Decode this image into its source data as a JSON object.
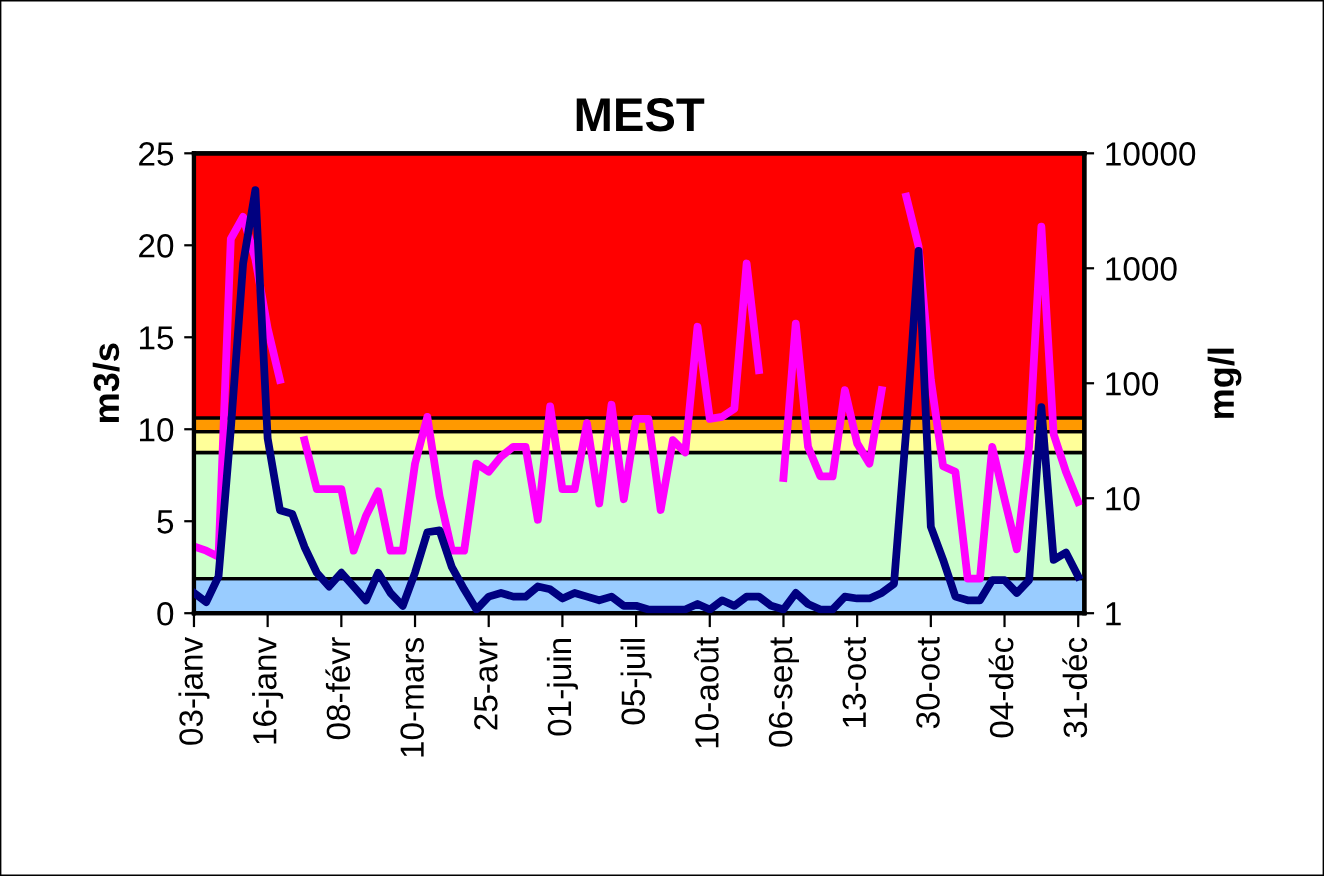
{
  "chart_data": {
    "type": "line",
    "title": "MEST",
    "ylabel": "m3/s",
    "y2label": "mg/l",
    "categories": [
      "03-janv",
      null,
      null,
      null,
      null,
      null,
      "16-janv",
      null,
      null,
      null,
      null,
      null,
      "08-févr",
      null,
      null,
      null,
      null,
      null,
      "10-mars",
      null,
      null,
      null,
      null,
      null,
      "25-avr",
      null,
      null,
      null,
      null,
      null,
      "01-juin",
      null,
      null,
      null,
      null,
      null,
      "05-juil",
      null,
      null,
      null,
      null,
      null,
      "10-août",
      null,
      null,
      null,
      null,
      null,
      "06-sept",
      null,
      null,
      null,
      null,
      null,
      "13-oct",
      null,
      null,
      null,
      null,
      null,
      "30-oct",
      null,
      null,
      null,
      null,
      null,
      "04-déc",
      null,
      null,
      null,
      null,
      null,
      "31-déc"
    ],
    "series": [
      {
        "color": "#000080",
        "values": [
          1.1,
          0.6,
          2.0,
          10,
          19,
          23,
          9.5,
          5.6,
          5.4,
          3.6,
          2.2,
          1.45,
          2.2,
          1.45,
          0.7,
          2.2,
          1.1,
          0.4,
          2.2,
          4.4,
          4.5,
          2.5,
          1.3,
          0.2,
          0.9,
          1.1,
          0.9,
          0.9,
          1.45,
          1.3,
          0.8,
          1.1,
          0.9,
          0.7,
          0.9,
          0.4,
          0.4,
          0.2,
          0.2,
          0.2,
          0.2,
          0.5,
          0.2,
          0.7,
          0.4,
          0.9,
          0.9,
          0.4,
          0.2,
          1.1,
          0.5,
          0.2,
          0.2,
          0.9,
          0.8,
          0.8,
          1.1,
          1.6,
          10,
          19.7,
          4.7,
          2.9,
          0.9,
          0.7,
          0.7,
          1.8,
          1.8,
          1.1,
          1.8,
          11.2,
          2.9,
          3.3,
          2.0
        ]
      },
      {
        "color": "#ff00ff",
        "axis": "y2",
        "values": [
          3.8,
          3.5,
          3.1,
          1800,
          2800,
          1200,
          300,
          107,
          null,
          32,
          12,
          12,
          12,
          3.5,
          7,
          11.5,
          3.5,
          3.5,
          20,
          51,
          10.4,
          3.5,
          3.5,
          20,
          17,
          23,
          28,
          28,
          6.5,
          63,
          12,
          12,
          45,
          9,
          65,
          9.8,
          49,
          49,
          7.9,
          32,
          25,
          310,
          49,
          51,
          60,
          1100,
          130,
          null,
          15,
          330,
          28,
          15.5,
          15.5,
          87,
          30,
          20,
          87,
          null,
          4200,
          1550,
          107,
          19,
          17,
          2,
          2,
          28,
          9.8,
          3.6,
          28,
          2300,
          36,
          17,
          9.3
        ]
      }
    ],
    "ylim": [
      0,
      25
    ],
    "yticks": [
      0,
      5,
      10,
      15,
      20,
      25
    ],
    "log": "y2",
    "y2lim": [
      1,
      10000
    ],
    "y2ticks": [
      1,
      10,
      100,
      1000,
      10000
    ],
    "bands": [
      {
        "axis": "y2",
        "from": 1,
        "to": 2,
        "color": "#99ccff"
      },
      {
        "axis": "y2",
        "from": 2,
        "to": 25,
        "color": "#ccffcc"
      },
      {
        "axis": "y2",
        "from": 25,
        "to": 38,
        "color": "#ffff99"
      },
      {
        "axis": "y2",
        "from": 38,
        "to": 50,
        "color": "#ff9900"
      },
      {
        "axis": "y2",
        "from": 50,
        "to": 10000,
        "color": "#ff0000"
      }
    ],
    "grid": false,
    "legend": false,
    "marker": "none",
    "line_style": "solid"
  }
}
